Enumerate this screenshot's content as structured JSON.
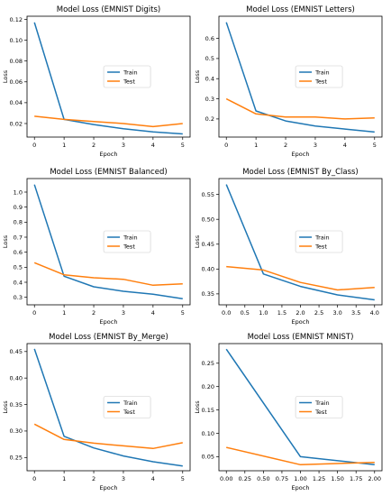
{
  "chart_data": [
    {
      "type": "line",
      "title": "Model Loss (EMNIST Digits)",
      "xlabel": "Epoch",
      "ylabel": "Loss",
      "xlim": [
        -0.25,
        5.25
      ],
      "ylim": [
        0.007,
        0.123
      ],
      "xticks": [
        0,
        1,
        2,
        3,
        4,
        5
      ],
      "xtick_labels": [
        "0",
        "1",
        "2",
        "3",
        "4",
        "5"
      ],
      "yticks": [
        0.02,
        0.04,
        0.06,
        0.08,
        0.1,
        0.12
      ],
      "ytick_labels": [
        "0.02",
        "0.04",
        "0.06",
        "0.08",
        "0.10",
        "0.12"
      ],
      "legend": "center-right",
      "series": [
        {
          "name": "Train",
          "color": "#1f77b4",
          "x": [
            0,
            1,
            2,
            3,
            4,
            5
          ],
          "y": [
            0.117,
            0.024,
            0.019,
            0.015,
            0.012,
            0.01
          ]
        },
        {
          "name": "Test",
          "color": "#ff7f0e",
          "x": [
            0,
            1,
            2,
            3,
            4,
            5
          ],
          "y": [
            0.027,
            0.024,
            0.022,
            0.02,
            0.017,
            0.02
          ]
        }
      ]
    },
    {
      "type": "line",
      "title": "Model Loss (EMNIST Letters)",
      "xlabel": "Epoch",
      "ylabel": "Loss",
      "xlim": [
        -0.25,
        5.25
      ],
      "ylim": [
        0.11,
        0.71
      ],
      "xticks": [
        0,
        1,
        2,
        3,
        4,
        5
      ],
      "xtick_labels": [
        "0",
        "1",
        "2",
        "3",
        "4",
        "5"
      ],
      "yticks": [
        0.2,
        0.3,
        0.4,
        0.5,
        0.6
      ],
      "ytick_labels": [
        "0.2",
        "0.3",
        "0.4",
        "0.5",
        "0.6"
      ],
      "legend": "center-right",
      "series": [
        {
          "name": "Train",
          "color": "#1f77b4",
          "x": [
            0,
            1,
            2,
            3,
            4,
            5
          ],
          "y": [
            0.68,
            0.24,
            0.19,
            0.165,
            0.15,
            0.135
          ]
        },
        {
          "name": "Test",
          "color": "#ff7f0e",
          "x": [
            0,
            1,
            2,
            3,
            4,
            5
          ],
          "y": [
            0.3,
            0.225,
            0.21,
            0.21,
            0.2,
            0.205
          ]
        }
      ]
    },
    {
      "type": "line",
      "title": "Model Loss (EMNIST Balanced)",
      "xlabel": "Epoch",
      "ylabel": "Loss",
      "xlim": [
        -0.25,
        5.25
      ],
      "ylim": [
        0.25,
        1.09
      ],
      "xticks": [
        0,
        1,
        2,
        3,
        4,
        5
      ],
      "xtick_labels": [
        "0",
        "1",
        "2",
        "3",
        "4",
        "5"
      ],
      "yticks": [
        0.3,
        0.4,
        0.5,
        0.6,
        0.7,
        0.8,
        0.9,
        1.0
      ],
      "ytick_labels": [
        "0.3",
        "0.4",
        "0.5",
        "0.6",
        "0.7",
        "0.8",
        "0.9",
        "1.0"
      ],
      "legend": "center-right",
      "series": [
        {
          "name": "Train",
          "color": "#1f77b4",
          "x": [
            0,
            1,
            2,
            3,
            4,
            5
          ],
          "y": [
            1.05,
            0.44,
            0.37,
            0.34,
            0.32,
            0.29
          ]
        },
        {
          "name": "Test",
          "color": "#ff7f0e",
          "x": [
            0,
            1,
            2,
            3,
            4,
            5
          ],
          "y": [
            0.53,
            0.45,
            0.43,
            0.42,
            0.38,
            0.39
          ]
        }
      ]
    },
    {
      "type": "line",
      "title": "Model Loss (EMNIST By_Class)",
      "xlabel": "Epoch",
      "ylabel": "Loss",
      "xlim": [
        -0.2,
        4.2
      ],
      "ylim": [
        0.328,
        0.582
      ],
      "xticks": [
        0,
        0.5,
        1,
        1.5,
        2,
        2.5,
        3,
        3.5,
        4
      ],
      "xtick_labels": [
        "0.0",
        "0.5",
        "1.0",
        "1.5",
        "2.0",
        "2.5",
        "3.0",
        "3.5",
        "4.0"
      ],
      "yticks": [
        0.35,
        0.4,
        0.45,
        0.5,
        0.55
      ],
      "ytick_labels": [
        "0.35",
        "0.40",
        "0.45",
        "0.50",
        "0.55"
      ],
      "legend": "center-right",
      "series": [
        {
          "name": "Train",
          "color": "#1f77b4",
          "x": [
            0,
            1,
            2,
            3,
            4
          ],
          "y": [
            0.57,
            0.39,
            0.365,
            0.348,
            0.338
          ]
        },
        {
          "name": "Test",
          "color": "#ff7f0e",
          "x": [
            0,
            1,
            2,
            3,
            4
          ],
          "y": [
            0.405,
            0.398,
            0.373,
            0.358,
            0.363
          ]
        }
      ]
    },
    {
      "type": "line",
      "title": "Model Loss (EMNIST By_Merge)",
      "xlabel": "Epoch",
      "ylabel": "Loss",
      "xlim": [
        -0.25,
        5.25
      ],
      "ylim": [
        0.225,
        0.465
      ],
      "xticks": [
        0,
        1,
        2,
        3,
        4,
        5
      ],
      "xtick_labels": [
        "0",
        "1",
        "2",
        "3",
        "4",
        "5"
      ],
      "yticks": [
        0.25,
        0.3,
        0.35,
        0.4,
        0.45
      ],
      "ytick_labels": [
        "0.25",
        "0.30",
        "0.35",
        "0.40",
        "0.45"
      ],
      "legend": "center-right",
      "series": [
        {
          "name": "Train",
          "color": "#1f77b4",
          "x": [
            0,
            1,
            2,
            3,
            4,
            5
          ],
          "y": [
            0.455,
            0.29,
            0.268,
            0.253,
            0.242,
            0.234
          ]
        },
        {
          "name": "Test",
          "color": "#ff7f0e",
          "x": [
            0,
            1,
            2,
            3,
            4,
            5
          ],
          "y": [
            0.313,
            0.284,
            0.277,
            0.272,
            0.267,
            0.278
          ]
        }
      ]
    },
    {
      "type": "line",
      "title": "Model Loss (EMNIST MNIST)",
      "xlabel": "Epoch",
      "ylabel": "Loss",
      "xlim": [
        -0.1,
        2.1
      ],
      "ylim": [
        0.02,
        0.292
      ],
      "xticks": [
        0,
        0.25,
        0.5,
        0.75,
        1,
        1.25,
        1.5,
        1.75,
        2
      ],
      "xtick_labels": [
        "0.00",
        "0.25",
        "0.50",
        "0.75",
        "1.00",
        "1.25",
        "1.50",
        "1.75",
        "2.00"
      ],
      "yticks": [
        0.05,
        0.1,
        0.15,
        0.2,
        0.25
      ],
      "ytick_labels": [
        "0.05",
        "0.10",
        "0.15",
        "0.20",
        "0.25"
      ],
      "legend": "center-right",
      "series": [
        {
          "name": "Train",
          "color": "#1f77b4",
          "x": [
            0,
            1,
            2
          ],
          "y": [
            0.28,
            0.05,
            0.033
          ]
        },
        {
          "name": "Test",
          "color": "#ff7f0e",
          "x": [
            0,
            1,
            2
          ],
          "y": [
            0.07,
            0.033,
            0.038
          ]
        }
      ]
    }
  ]
}
